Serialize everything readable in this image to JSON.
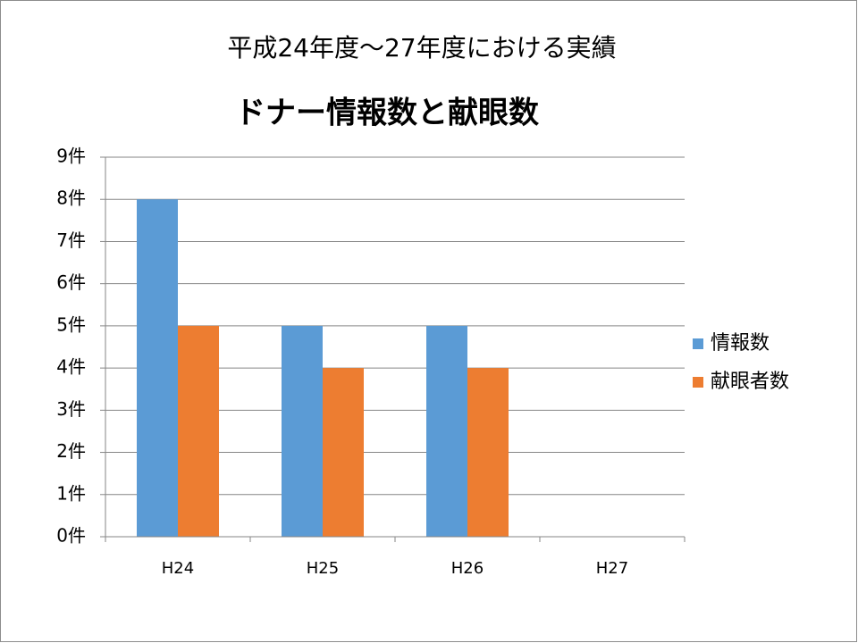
{
  "chart_data": {
    "type": "bar",
    "title": "平成24年度～27年度における実績",
    "subtitle": "ドナー情報数と献眼数",
    "categories": [
      "H24",
      "H25",
      "H26",
      "H27"
    ],
    "series": [
      {
        "name": "情報数",
        "color": "#5b9bd5",
        "values": [
          8,
          5,
          5,
          null
        ]
      },
      {
        "name": "献眼者数",
        "color": "#ed7d31",
        "values": [
          5,
          4,
          4,
          null
        ]
      }
    ],
    "ylim": [
      0,
      9
    ],
    "yticks": [
      {
        "value": 0,
        "label": "0件"
      },
      {
        "value": 1,
        "label": "1件"
      },
      {
        "value": 2,
        "label": "2件"
      },
      {
        "value": 3,
        "label": "3件"
      },
      {
        "value": 4,
        "label": "4件"
      },
      {
        "value": 5,
        "label": "5件"
      },
      {
        "value": 6,
        "label": "6件"
      },
      {
        "value": 7,
        "label": "7件"
      },
      {
        "value": 8,
        "label": "8件"
      },
      {
        "value": 9,
        "label": "9件"
      }
    ],
    "grid": true,
    "legend": "right"
  }
}
